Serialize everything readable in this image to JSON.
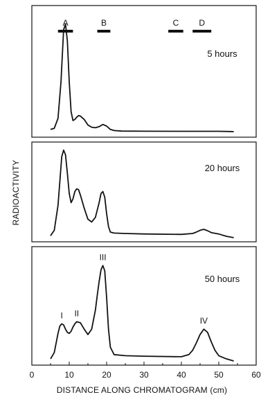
{
  "chart_data": {
    "type": "line",
    "xlabel": "DISTANCE ALONG CHROMATOGRAM (cm)",
    "ylabel": "RADIOACTIVITY",
    "xlim": [
      0,
      60
    ],
    "x_ticks": [
      "0",
      "10",
      "20",
      "30",
      "40",
      "50",
      "60"
    ],
    "reference_bands": [
      {
        "label": "A",
        "from": 7,
        "to": 11
      },
      {
        "label": "B",
        "from": 17.5,
        "to": 21
      },
      {
        "label": "C",
        "from": 36.5,
        "to": 40.5
      },
      {
        "label": "D",
        "from": 43,
        "to": 48
      }
    ],
    "panels": [
      {
        "label": "5 hours",
        "y_range": [
          0,
          1
        ],
        "x": [
          5,
          6,
          7,
          7.8,
          8.5,
          9,
          9.5,
          10,
          10.5,
          11,
          11.5,
          12,
          12.5,
          13,
          14,
          15,
          16,
          17,
          18,
          19,
          20,
          21,
          22,
          24,
          30,
          40,
          50,
          53,
          54
        ],
        "y": [
          0.02,
          0.03,
          0.12,
          0.45,
          0.92,
          0.97,
          0.82,
          0.45,
          0.18,
          0.1,
          0.11,
          0.13,
          0.145,
          0.14,
          0.11,
          0.06,
          0.04,
          0.035,
          0.045,
          0.065,
          0.05,
          0.02,
          0.01,
          0.005,
          0.004,
          0.003,
          0.003,
          0.001,
          0
        ],
        "peak_labels": []
      },
      {
        "label": "20 hours",
        "y_range": [
          0,
          1
        ],
        "x": [
          5,
          6,
          7,
          8,
          8.5,
          9,
          9.5,
          10,
          10.5,
          11,
          11.5,
          12,
          12.5,
          13,
          14,
          15,
          16,
          17,
          18,
          18.5,
          19,
          19.5,
          20,
          20.5,
          21,
          22,
          25,
          30,
          40,
          43,
          44,
          45,
          46,
          47,
          48,
          50,
          52,
          54
        ],
        "y": [
          0.02,
          0.08,
          0.35,
          0.88,
          0.95,
          0.9,
          0.7,
          0.48,
          0.38,
          0.42,
          0.5,
          0.53,
          0.52,
          0.46,
          0.32,
          0.2,
          0.17,
          0.22,
          0.38,
          0.48,
          0.5,
          0.44,
          0.26,
          0.12,
          0.06,
          0.05,
          0.045,
          0.04,
          0.035,
          0.045,
          0.06,
          0.08,
          0.09,
          0.075,
          0.055,
          0.04,
          0.015,
          0
        ]
      },
      {
        "label": "50 hours",
        "y_range": [
          0,
          1
        ],
        "x": [
          5,
          6,
          7,
          7.5,
          8,
          8.5,
          9,
          9.5,
          10,
          10.5,
          11,
          11.5,
          12,
          13,
          14,
          15,
          16,
          17,
          17.5,
          18,
          18.5,
          19,
          19.5,
          20,
          20.5,
          21,
          22,
          25,
          30,
          40,
          42,
          43,
          44,
          45,
          46,
          47,
          48,
          49,
          50,
          52,
          54
        ],
        "y": [
          0.02,
          0.08,
          0.26,
          0.33,
          0.35,
          0.34,
          0.3,
          0.27,
          0.26,
          0.28,
          0.32,
          0.35,
          0.37,
          0.36,
          0.3,
          0.25,
          0.3,
          0.48,
          0.62,
          0.75,
          0.86,
          0.9,
          0.85,
          0.6,
          0.3,
          0.13,
          0.06,
          0.05,
          0.045,
          0.04,
          0.06,
          0.1,
          0.17,
          0.25,
          0.3,
          0.27,
          0.18,
          0.1,
          0.05,
          0.02,
          0
        ],
        "peak_labels": [
          {
            "text": "I",
            "x": 8
          },
          {
            "text": "II",
            "x": 12
          },
          {
            "text": "III",
            "x": 19
          },
          {
            "text": "IV",
            "x": 46
          }
        ]
      }
    ]
  }
}
